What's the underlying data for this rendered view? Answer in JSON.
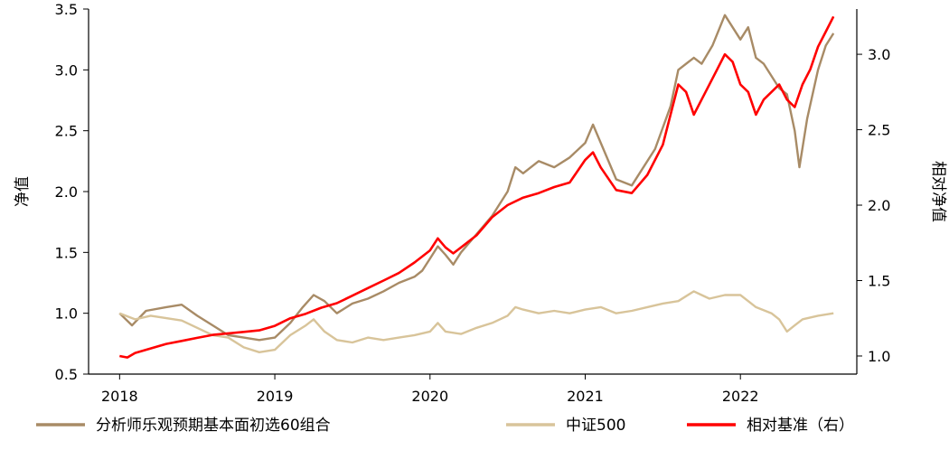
{
  "chart_data": {
    "type": "line",
    "left_axis": {
      "label": "净值",
      "ylim": [
        0.5,
        3.5
      ],
      "ticks": [
        0.5,
        1.0,
        1.5,
        2.0,
        2.5,
        3.0,
        3.5
      ],
      "tick_labels": [
        "0.5",
        "1.0",
        "1.5",
        "2.0",
        "2.5",
        "3.0",
        "3.5"
      ]
    },
    "right_axis": {
      "label": "相对净值",
      "ylim": [
        0.88,
        3.3
      ],
      "ticks": [
        1.0,
        1.5,
        2.0,
        2.5,
        3.0
      ],
      "tick_labels": [
        "1.0",
        "1.5",
        "2.0",
        "2.5",
        "3.0"
      ]
    },
    "x_axis": {
      "xlim": [
        2017.8,
        2022.75
      ],
      "ticks": [
        2018,
        2019,
        2020,
        2021,
        2022
      ],
      "tick_labels": [
        "2018",
        "2019",
        "2020",
        "2021",
        "2022"
      ]
    },
    "grid": false,
    "legend_position": "bottom",
    "series": [
      {
        "name": "分析师乐观预期基本面初选60组合",
        "axis": "left",
        "color": "#a88b66",
        "points": [
          [
            2018.0,
            1.0
          ],
          [
            2018.08,
            0.9
          ],
          [
            2018.17,
            1.02
          ],
          [
            2018.3,
            1.05
          ],
          [
            2018.4,
            1.07
          ],
          [
            2018.5,
            0.98
          ],
          [
            2018.6,
            0.9
          ],
          [
            2018.7,
            0.82
          ],
          [
            2018.8,
            0.8
          ],
          [
            2018.9,
            0.78
          ],
          [
            2019.0,
            0.8
          ],
          [
            2019.1,
            0.92
          ],
          [
            2019.18,
            1.05
          ],
          [
            2019.25,
            1.15
          ],
          [
            2019.32,
            1.1
          ],
          [
            2019.4,
            1.0
          ],
          [
            2019.5,
            1.08
          ],
          [
            2019.6,
            1.12
          ],
          [
            2019.7,
            1.18
          ],
          [
            2019.8,
            1.25
          ],
          [
            2019.9,
            1.3
          ],
          [
            2019.95,
            1.35
          ],
          [
            2020.0,
            1.45
          ],
          [
            2020.05,
            1.55
          ],
          [
            2020.1,
            1.48
          ],
          [
            2020.15,
            1.4
          ],
          [
            2020.2,
            1.5
          ],
          [
            2020.3,
            1.65
          ],
          [
            2020.4,
            1.8
          ],
          [
            2020.5,
            2.0
          ],
          [
            2020.55,
            2.2
          ],
          [
            2020.6,
            2.15
          ],
          [
            2020.7,
            2.25
          ],
          [
            2020.8,
            2.2
          ],
          [
            2020.9,
            2.28
          ],
          [
            2021.0,
            2.4
          ],
          [
            2021.05,
            2.55
          ],
          [
            2021.1,
            2.4
          ],
          [
            2021.2,
            2.1
          ],
          [
            2021.3,
            2.05
          ],
          [
            2021.35,
            2.15
          ],
          [
            2021.45,
            2.35
          ],
          [
            2021.55,
            2.7
          ],
          [
            2021.6,
            3.0
          ],
          [
            2021.7,
            3.1
          ],
          [
            2021.75,
            3.05
          ],
          [
            2021.82,
            3.2
          ],
          [
            2021.9,
            3.45
          ],
          [
            2021.95,
            3.35
          ],
          [
            2022.0,
            3.25
          ],
          [
            2022.05,
            3.35
          ],
          [
            2022.1,
            3.1
          ],
          [
            2022.15,
            3.05
          ],
          [
            2022.2,
            2.95
          ],
          [
            2022.25,
            2.85
          ],
          [
            2022.3,
            2.8
          ],
          [
            2022.35,
            2.5
          ],
          [
            2022.38,
            2.2
          ],
          [
            2022.43,
            2.6
          ],
          [
            2022.5,
            3.0
          ],
          [
            2022.55,
            3.2
          ],
          [
            2022.6,
            3.3
          ]
        ]
      },
      {
        "name": "中证500",
        "axis": "left",
        "color": "#d8c49a",
        "points": [
          [
            2018.0,
            1.0
          ],
          [
            2018.1,
            0.95
          ],
          [
            2018.2,
            0.98
          ],
          [
            2018.3,
            0.96
          ],
          [
            2018.4,
            0.94
          ],
          [
            2018.5,
            0.88
          ],
          [
            2018.6,
            0.82
          ],
          [
            2018.7,
            0.8
          ],
          [
            2018.8,
            0.72
          ],
          [
            2018.9,
            0.68
          ],
          [
            2019.0,
            0.7
          ],
          [
            2019.1,
            0.82
          ],
          [
            2019.2,
            0.9
          ],
          [
            2019.25,
            0.95
          ],
          [
            2019.32,
            0.85
          ],
          [
            2019.4,
            0.78
          ],
          [
            2019.5,
            0.76
          ],
          [
            2019.6,
            0.8
          ],
          [
            2019.7,
            0.78
          ],
          [
            2019.8,
            0.8
          ],
          [
            2019.9,
            0.82
          ],
          [
            2020.0,
            0.85
          ],
          [
            2020.05,
            0.92
          ],
          [
            2020.1,
            0.85
          ],
          [
            2020.2,
            0.83
          ],
          [
            2020.3,
            0.88
          ],
          [
            2020.4,
            0.92
          ],
          [
            2020.5,
            0.98
          ],
          [
            2020.55,
            1.05
          ],
          [
            2020.6,
            1.03
          ],
          [
            2020.7,
            1.0
          ],
          [
            2020.8,
            1.02
          ],
          [
            2020.9,
            1.0
          ],
          [
            2021.0,
            1.03
          ],
          [
            2021.1,
            1.05
          ],
          [
            2021.2,
            1.0
          ],
          [
            2021.3,
            1.02
          ],
          [
            2021.4,
            1.05
          ],
          [
            2021.5,
            1.08
          ],
          [
            2021.6,
            1.1
          ],
          [
            2021.7,
            1.18
          ],
          [
            2021.75,
            1.15
          ],
          [
            2021.8,
            1.12
          ],
          [
            2021.9,
            1.15
          ],
          [
            2022.0,
            1.15
          ],
          [
            2022.05,
            1.1
          ],
          [
            2022.1,
            1.05
          ],
          [
            2022.2,
            1.0
          ],
          [
            2022.25,
            0.95
          ],
          [
            2022.3,
            0.85
          ],
          [
            2022.35,
            0.9
          ],
          [
            2022.4,
            0.95
          ],
          [
            2022.5,
            0.98
          ],
          [
            2022.6,
            1.0
          ]
        ]
      },
      {
        "name": "相对基准（右）",
        "axis": "right",
        "color": "#ff0000",
        "points": [
          [
            2018.0,
            1.0
          ],
          [
            2018.05,
            0.99
          ],
          [
            2018.1,
            1.02
          ],
          [
            2018.2,
            1.05
          ],
          [
            2018.3,
            1.08
          ],
          [
            2018.4,
            1.1
          ],
          [
            2018.5,
            1.12
          ],
          [
            2018.6,
            1.14
          ],
          [
            2018.7,
            1.15
          ],
          [
            2018.8,
            1.16
          ],
          [
            2018.9,
            1.17
          ],
          [
            2019.0,
            1.2
          ],
          [
            2019.1,
            1.25
          ],
          [
            2019.2,
            1.28
          ],
          [
            2019.3,
            1.32
          ],
          [
            2019.4,
            1.35
          ],
          [
            2019.5,
            1.4
          ],
          [
            2019.6,
            1.45
          ],
          [
            2019.7,
            1.5
          ],
          [
            2019.8,
            1.55
          ],
          [
            2019.9,
            1.62
          ],
          [
            2020.0,
            1.7
          ],
          [
            2020.05,
            1.78
          ],
          [
            2020.1,
            1.72
          ],
          [
            2020.15,
            1.68
          ],
          [
            2020.2,
            1.72
          ],
          [
            2020.3,
            1.8
          ],
          [
            2020.4,
            1.92
          ],
          [
            2020.5,
            2.0
          ],
          [
            2020.6,
            2.05
          ],
          [
            2020.7,
            2.08
          ],
          [
            2020.8,
            2.12
          ],
          [
            2020.9,
            2.15
          ],
          [
            2021.0,
            2.3
          ],
          [
            2021.05,
            2.35
          ],
          [
            2021.1,
            2.25
          ],
          [
            2021.2,
            2.1
          ],
          [
            2021.3,
            2.08
          ],
          [
            2021.4,
            2.2
          ],
          [
            2021.5,
            2.4
          ],
          [
            2021.55,
            2.6
          ],
          [
            2021.6,
            2.8
          ],
          [
            2021.65,
            2.75
          ],
          [
            2021.7,
            2.6
          ],
          [
            2021.75,
            2.7
          ],
          [
            2021.85,
            2.9
          ],
          [
            2021.9,
            3.0
          ],
          [
            2021.95,
            2.95
          ],
          [
            2022.0,
            2.8
          ],
          [
            2022.05,
            2.75
          ],
          [
            2022.1,
            2.6
          ],
          [
            2022.15,
            2.7
          ],
          [
            2022.2,
            2.75
          ],
          [
            2022.25,
            2.8
          ],
          [
            2022.3,
            2.7
          ],
          [
            2022.35,
            2.65
          ],
          [
            2022.4,
            2.8
          ],
          [
            2022.45,
            2.9
          ],
          [
            2022.5,
            3.05
          ],
          [
            2022.55,
            3.15
          ],
          [
            2022.6,
            3.25
          ]
        ]
      }
    ]
  }
}
